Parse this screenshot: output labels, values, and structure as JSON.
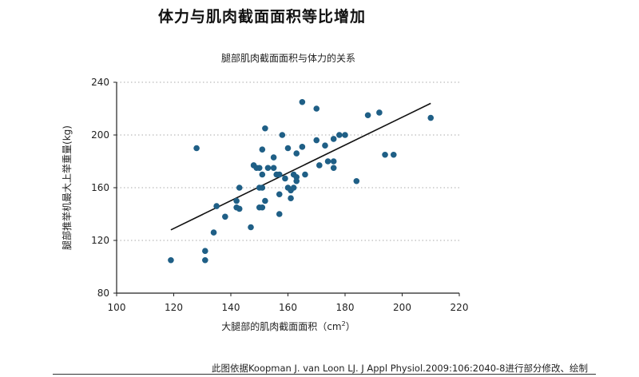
{
  "page": {
    "title": "体力与肌肉截面面积等比增加",
    "source_note": "此图依据Koopman J. van Loon LJ. J Appl Physiol.2009:106:2040-8进行部分修改、绘制"
  },
  "colors": {
    "point": "#1f5f86",
    "trend_line": "#111111",
    "grid": "#bbbbbb",
    "axis": "#222222"
  },
  "chart_data": {
    "type": "scatter",
    "title": "腿部肌肉截面面积与体力的关系",
    "xlabel": "大腿部的肌肉截面面积",
    "xlabel_unit_base": "cm",
    "xlabel_unit_sup": "2",
    "ylabel": "腿部推举机最大上举重量(kg)",
    "xlim": [
      100,
      220
    ],
    "ylim": [
      80,
      240
    ],
    "x_ticks": [
      100,
      120,
      140,
      160,
      180,
      200,
      220
    ],
    "y_ticks": [
      80,
      120,
      160,
      200,
      240
    ],
    "x_tick_labels": [
      "100",
      "120",
      "140",
      "160",
      "180",
      "200",
      "220"
    ],
    "y_tick_labels": [
      "80",
      "120",
      "160",
      "200",
      "240"
    ],
    "grid": "horizontal-dotted",
    "trend_line": {
      "x": [
        119,
        210
      ],
      "y": [
        128,
        224
      ]
    },
    "points": [
      {
        "x": 119,
        "y": 105
      },
      {
        "x": 128,
        "y": 190
      },
      {
        "x": 131,
        "y": 112
      },
      {
        "x": 131,
        "y": 105
      },
      {
        "x": 134,
        "y": 126
      },
      {
        "x": 135,
        "y": 146
      },
      {
        "x": 138,
        "y": 138
      },
      {
        "x": 142,
        "y": 150
      },
      {
        "x": 142,
        "y": 145
      },
      {
        "x": 143,
        "y": 144
      },
      {
        "x": 143,
        "y": 160
      },
      {
        "x": 147,
        "y": 130
      },
      {
        "x": 148,
        "y": 177
      },
      {
        "x": 149,
        "y": 175
      },
      {
        "x": 150,
        "y": 175
      },
      {
        "x": 150,
        "y": 160
      },
      {
        "x": 150,
        "y": 145
      },
      {
        "x": 151,
        "y": 145
      },
      {
        "x": 151,
        "y": 160
      },
      {
        "x": 151,
        "y": 170
      },
      {
        "x": 151,
        "y": 189
      },
      {
        "x": 152,
        "y": 205
      },
      {
        "x": 152,
        "y": 150
      },
      {
        "x": 153,
        "y": 175
      },
      {
        "x": 155,
        "y": 175
      },
      {
        "x": 155,
        "y": 183
      },
      {
        "x": 156,
        "y": 170
      },
      {
        "x": 157,
        "y": 170
      },
      {
        "x": 157,
        "y": 155
      },
      {
        "x": 157,
        "y": 140
      },
      {
        "x": 158,
        "y": 200
      },
      {
        "x": 159,
        "y": 167
      },
      {
        "x": 160,
        "y": 190
      },
      {
        "x": 160,
        "y": 160
      },
      {
        "x": 161,
        "y": 158
      },
      {
        "x": 161,
        "y": 152
      },
      {
        "x": 162,
        "y": 160
      },
      {
        "x": 162,
        "y": 170
      },
      {
        "x": 163,
        "y": 186
      },
      {
        "x": 163,
        "y": 168
      },
      {
        "x": 163,
        "y": 165
      },
      {
        "x": 165,
        "y": 225
      },
      {
        "x": 165,
        "y": 191
      },
      {
        "x": 166,
        "y": 170
      },
      {
        "x": 170,
        "y": 220
      },
      {
        "x": 170,
        "y": 196
      },
      {
        "x": 171,
        "y": 177
      },
      {
        "x": 173,
        "y": 192
      },
      {
        "x": 174,
        "y": 180
      },
      {
        "x": 176,
        "y": 180
      },
      {
        "x": 176,
        "y": 175
      },
      {
        "x": 176,
        "y": 197
      },
      {
        "x": 178,
        "y": 200
      },
      {
        "x": 180,
        "y": 200
      },
      {
        "x": 184,
        "y": 165
      },
      {
        "x": 188,
        "y": 215
      },
      {
        "x": 192,
        "y": 217
      },
      {
        "x": 194,
        "y": 185
      },
      {
        "x": 197,
        "y": 185
      },
      {
        "x": 210,
        "y": 213
      }
    ]
  }
}
